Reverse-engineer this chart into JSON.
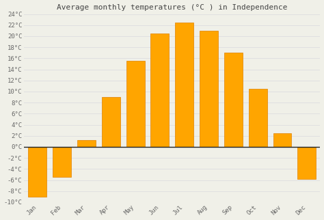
{
  "title": "Average monthly temperatures (°C ) in Independence",
  "months": [
    "Jan",
    "Feb",
    "Mar",
    "Apr",
    "May",
    "Jun",
    "Jul",
    "Aug",
    "Sep",
    "Oct",
    "Nov",
    "Dec"
  ],
  "values": [
    -9,
    -5.5,
    1.2,
    9.0,
    15.5,
    20.5,
    22.5,
    21.0,
    17.0,
    10.5,
    2.5,
    -5.8
  ],
  "bar_color": "#FFA500",
  "bar_edge_color": "#E08000",
  "ylim": [
    -10,
    24
  ],
  "yticks": [
    -10,
    -8,
    -6,
    -4,
    -2,
    0,
    2,
    4,
    6,
    8,
    10,
    12,
    14,
    16,
    18,
    20,
    22,
    24
  ],
  "grid_color": "#e0e0e0",
  "background_color": "#f0f0e8",
  "plot_bg_color": "#f0f0e8",
  "title_fontsize": 8,
  "tick_fontsize": 6.5,
  "zero_line_color": "#222222",
  "bar_width": 0.75
}
